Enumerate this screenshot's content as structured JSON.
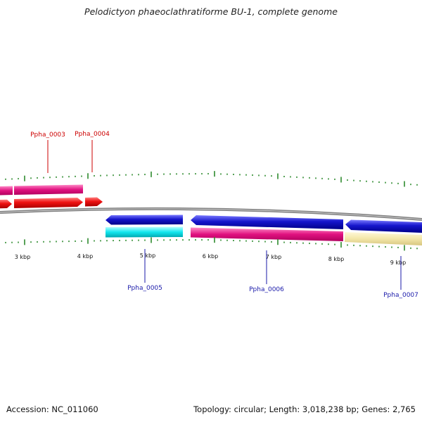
{
  "title": "Pelodictyon phaeoclathratiforme BU-1, complete genome",
  "footer": {
    "accession": "Accession: NC_011060",
    "summary": "Topology: circular; Length: 3,018,238 bp; Genes: 2,765"
  },
  "scale_labels": [
    "3 kbp",
    "4 kbp",
    "5 kbp",
    "6 kbp",
    "7 kbp",
    "8 kbp",
    "9 kbp"
  ],
  "gene_labels": {
    "forward": [
      "Ppha_0003",
      "Ppha_0004"
    ],
    "reverse": [
      "Ppha_0005",
      "Ppha_0006",
      "Ppha_0007"
    ]
  },
  "colors": {
    "forward_label": "#cc0000",
    "reverse_label": "#1a1aaa",
    "tick": "#2e8b2e",
    "backbone": "#7a7a7a",
    "gene_red": "#ee1111",
    "gene_blue": "#1515cc",
    "feature_pink": "#e0117f",
    "feature_cyan": "#11e6ee",
    "feature_cream": "#f3e6a8"
  }
}
